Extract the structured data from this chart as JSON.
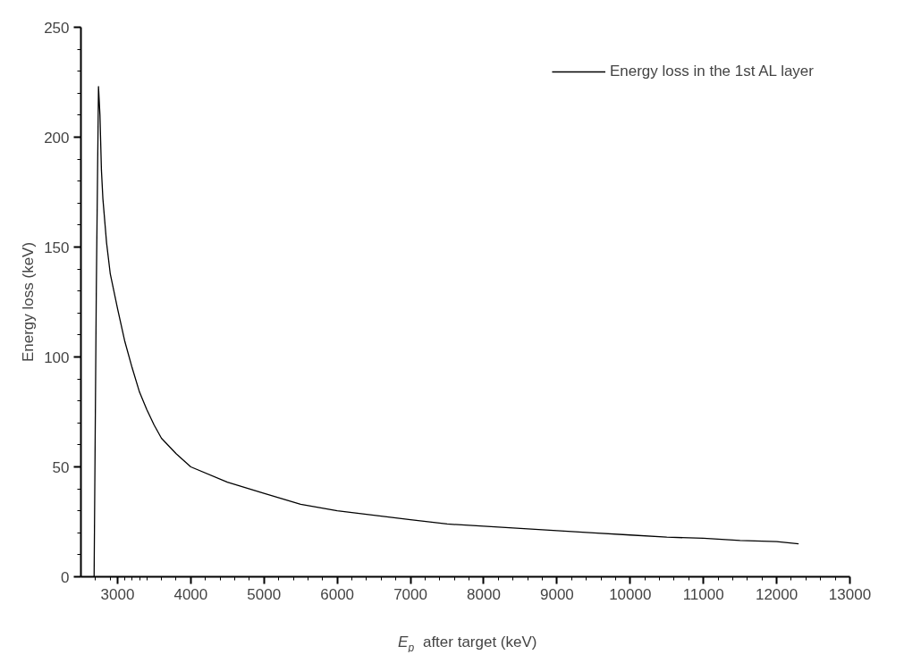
{
  "chart_data": {
    "type": "line",
    "xlabel": "E$_{p}$ after target (keV)",
    "ylabel": "Energy loss (keV)",
    "xlim": [
      2500,
      13000
    ],
    "xticks": [
      3000,
      4000,
      5000,
      6000,
      7000,
      8000,
      9000,
      10000,
      11000,
      12000,
      13000
    ],
    "ylim": [
      0,
      250
    ],
    "yticks": [
      0,
      50,
      100,
      150,
      200,
      250
    ],
    "grid": false,
    "legend": "top right",
    "series": [
      {
        "name": "Energy loss in the 1st AL layer",
        "color": "#000000",
        "x": [
          2680,
          2710,
          2740,
          2760,
          2780,
          2800,
          2850,
          2900,
          3000,
          3100,
          3200,
          3300,
          3400,
          3500,
          3600,
          3800,
          4000,
          4500,
          5000,
          5500,
          6000,
          6500,
          7000,
          7500,
          8000,
          8500,
          9000,
          9500,
          10000,
          10500,
          11000,
          11500,
          12000,
          12300
        ],
        "values": [
          0,
          130,
          223,
          210,
          185,
          172,
          152,
          138,
          122,
          107,
          95,
          84,
          76,
          69,
          63,
          56,
          50,
          43,
          38,
          33,
          30,
          28,
          26,
          24,
          23,
          22,
          21,
          20,
          19,
          18,
          17.5,
          16.5,
          16,
          15
        ]
      }
    ]
  }
}
